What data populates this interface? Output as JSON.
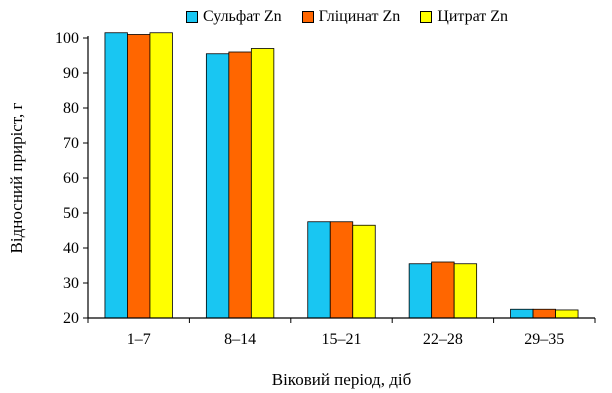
{
  "chart_data": {
    "type": "bar",
    "categories": [
      "1–7",
      "8–14",
      "15–21",
      "22–28",
      "29–35"
    ],
    "series": [
      {
        "name": "Сульфат Zn",
        "color": "#19C6F2",
        "values": [
          101.5,
          95.5,
          47.5,
          35.5,
          22.5
        ]
      },
      {
        "name": "Гліцинат Zn",
        "color": "#FF6600",
        "values": [
          101,
          96,
          47.5,
          36,
          22.5
        ]
      },
      {
        "name": "Цитрат Zn",
        "color": "#FFFF00",
        "values": [
          101.5,
          97,
          46.5,
          35.5,
          22.3
        ]
      }
    ],
    "xlabel": "Віковий період, діб",
    "ylabel": "Відносний приріст, г",
    "ylim": [
      20,
      100
    ],
    "yticks": [
      20,
      30,
      40,
      50,
      60,
      70,
      80,
      90,
      100
    ],
    "legend_position": "top",
    "grid": false
  }
}
